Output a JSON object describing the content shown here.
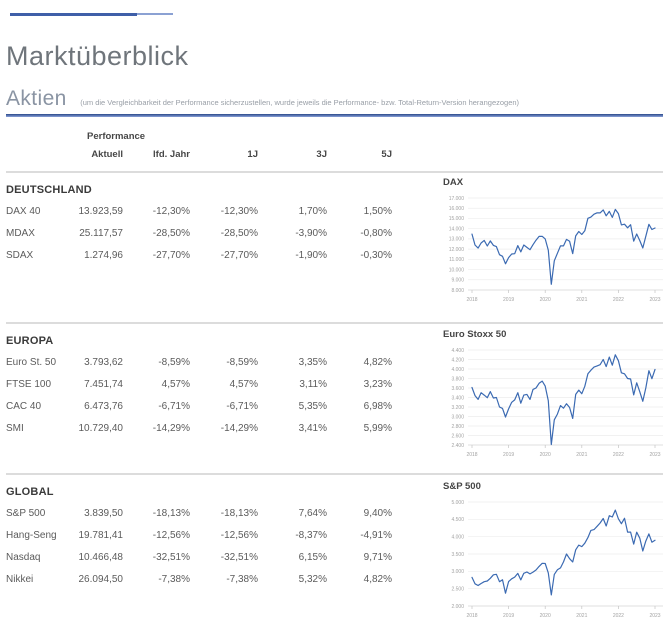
{
  "brand": {
    "accent_dark": "#3f5fa8",
    "accent_light": "#8ba1d3",
    "rule_blue": "#4a69ad"
  },
  "header": {
    "title": "Marktüberblick",
    "section_title": "Aktien",
    "section_note": "(um die Vergleichbarkeit der Performance sicherzustellen, wurde jeweils die Performance- bzw. Total-Return-Version herangezogen)"
  },
  "table": {
    "group_label": "Performance",
    "columns": [
      "Aktuell",
      "lfd. Jahr",
      "1J",
      "3J",
      "5J"
    ],
    "sections": [
      {
        "title": "DEUTSCHLAND",
        "rows": [
          {
            "name": "DAX 40",
            "values": [
              "13.923,59",
              "-12,30%",
              "-12,30%",
              "1,70%",
              "1,50%"
            ]
          },
          {
            "name": "MDAX",
            "values": [
              "25.117,57",
              "-28,50%",
              "-28,50%",
              "-3,90%",
              "-0,80%"
            ]
          },
          {
            "name": "SDAX",
            "values": [
              "1.274,96",
              "-27,70%",
              "-27,70%",
              "-1,90%",
              "-0,30%"
            ]
          }
        ]
      },
      {
        "title": "EUROPA",
        "rows": [
          {
            "name": "Euro St. 50",
            "values": [
              "3.793,62",
              "-8,59%",
              "-8,59%",
              "3,35%",
              "4,82%"
            ]
          },
          {
            "name": "FTSE 100",
            "values": [
              "7.451,74",
              "4,57%",
              "4,57%",
              "3,11%",
              "3,23%"
            ]
          },
          {
            "name": "CAC 40",
            "values": [
              "6.473,76",
              "-6,71%",
              "-6,71%",
              "5,35%",
              "6,98%"
            ]
          },
          {
            "name": "SMI",
            "values": [
              "10.729,40",
              "-14,29%",
              "-14,29%",
              "3,41%",
              "5,99%"
            ]
          }
        ]
      },
      {
        "title": "GLOBAL",
        "rows": [
          {
            "name": "S&P 500",
            "values": [
              "3.839,50",
              "-18,13%",
              "-18,13%",
              "7,64%",
              "9,40%"
            ]
          },
          {
            "name": "Hang-Seng",
            "values": [
              "19.781,41",
              "-12,56%",
              "-12,56%",
              "-8,37%",
              "-4,91%"
            ]
          },
          {
            "name": "Nasdaq",
            "values": [
              "10.466,48",
              "-32,51%",
              "-32,51%",
              "6,15%",
              "9,71%"
            ]
          },
          {
            "name": "Nikkei",
            "values": [
              "26.094,50",
              "-7,38%",
              "-7,38%",
              "5,32%",
              "4,82%"
            ]
          }
        ]
      }
    ]
  },
  "chart_data": [
    {
      "type": "line",
      "title": "DAX",
      "xlabel": "",
      "ylabel": "",
      "x_labels": [
        "2018",
        "2019",
        "2020",
        "2021",
        "2022",
        "2023"
      ],
      "ylim": [
        8000,
        17000
      ],
      "y_step": 1000,
      "grid": true,
      "legend": "none",
      "line_color": "#3b6ab2",
      "values": [
        13470,
        12400,
        12100,
        12600,
        12850,
        12300,
        12800,
        12360,
        12250,
        11450,
        11300,
        10560,
        11170,
        11520,
        11550,
        12340,
        11730,
        12400,
        12170,
        11940,
        12430,
        12870,
        13240,
        13250,
        13000,
        11890,
        8560,
        10860,
        11590,
        12310,
        12310,
        12950,
        12760,
        11560,
        13290,
        13720,
        13430,
        13790,
        15010,
        15130,
        15420,
        15550,
        15540,
        15840,
        15260,
        15690,
        15100,
        15880,
        15470,
        14370,
        14440,
        14080,
        14390,
        12780,
        13480,
        12830,
        12110,
        13250,
        14430,
        13920,
        14070
      ]
    },
    {
      "type": "line",
      "title": "Euro Stoxx 50",
      "xlabel": "",
      "ylabel": "",
      "x_labels": [
        "2018",
        "2019",
        "2020",
        "2021",
        "2022",
        "2023"
      ],
      "ylim": [
        2400,
        4400
      ],
      "y_step": 200,
      "grid": true,
      "legend": "none",
      "line_color": "#3b6ab2",
      "values": [
        3610,
        3440,
        3360,
        3500,
        3450,
        3395,
        3525,
        3390,
        3400,
        3200,
        3170,
        2990,
        3160,
        3300,
        3350,
        3500,
        3280,
        3450,
        3465,
        3360,
        3570,
        3600,
        3700,
        3745,
        3640,
        3330,
        2410,
        2930,
        3050,
        3230,
        3175,
        3270,
        3190,
        2960,
        3465,
        3555,
        3480,
        3635,
        3900,
        3975,
        4040,
        4065,
        4090,
        4200,
        4050,
        4250,
        4080,
        4300,
        4175,
        3920,
        3900,
        3800,
        3790,
        3455,
        3710,
        3520,
        3320,
        3600,
        3965,
        3795,
        3990
      ]
    },
    {
      "type": "line",
      "title": "S&P 500",
      "xlabel": "",
      "ylabel": "",
      "x_labels": [
        "2018",
        "2019",
        "2020",
        "2021",
        "2022",
        "2023"
      ],
      "ylim": [
        2000,
        5000
      ],
      "y_step": 500,
      "grid": true,
      "legend": "none",
      "line_color": "#3b6ab2",
      "values": [
        2824,
        2640,
        2590,
        2650,
        2700,
        2720,
        2800,
        2900,
        2915,
        2700,
        2760,
        2370,
        2704,
        2784,
        2834,
        2940,
        2752,
        2942,
        2980,
        2926,
        2977,
        3038,
        3141,
        3231,
        3226,
        2954,
        2320,
        2912,
        3044,
        3100,
        3271,
        3500,
        3363,
        3270,
        3622,
        3756,
        3714,
        3811,
        3973,
        4181,
        4204,
        4298,
        4395,
        4523,
        4308,
        4605,
        4567,
        4766,
        4516,
        4374,
        4530,
        4132,
        4132,
        3785,
        4130,
        3955,
        3586,
        3872,
        4080,
        3840,
        3895
      ]
    }
  ]
}
